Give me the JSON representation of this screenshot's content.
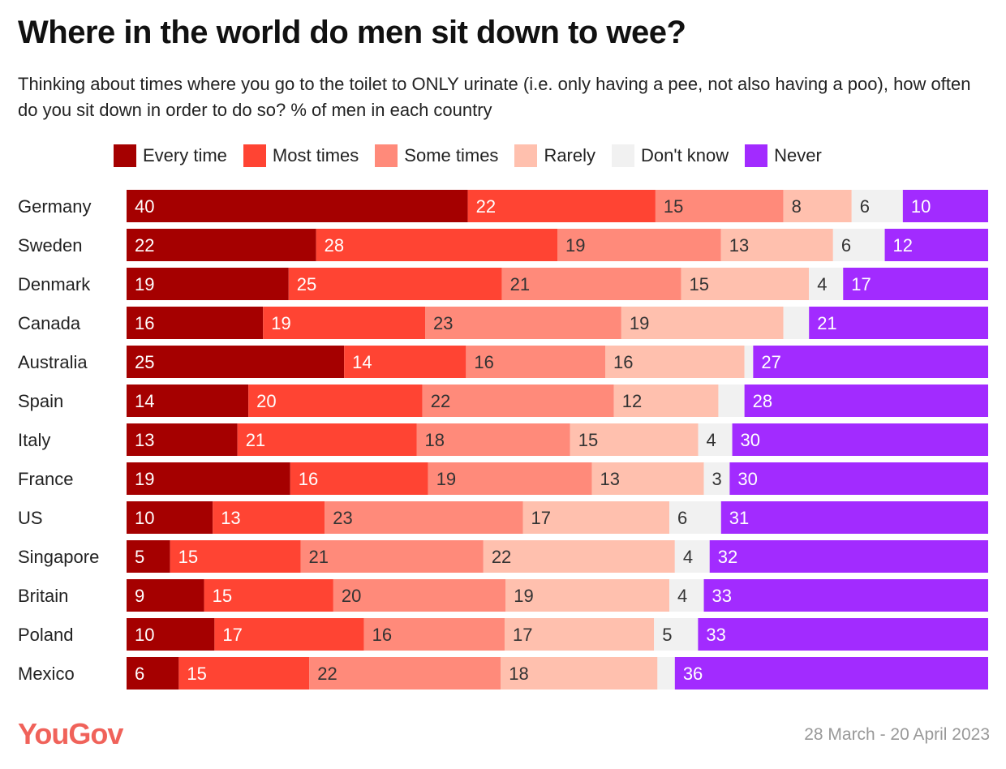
{
  "chart_data": {
    "type": "bar",
    "orientation": "horizontal",
    "stacked": true,
    "title": "Where in the world do men sit down to wee?",
    "subtitle": "Thinking about times where you go to the toilet to ONLY urinate (i.e. only having a pee, not also having a poo), how often do you sit down in order to do so? % of men in each country",
    "legend_position": "top",
    "grid": false,
    "categories": [
      "Germany",
      "Sweden",
      "Denmark",
      "Canada",
      "Australia",
      "Spain",
      "Italy",
      "France",
      "US",
      "Singapore",
      "Britain",
      "Poland",
      "Mexico"
    ],
    "series": [
      {
        "name": "Every time",
        "color": "#a50000",
        "text_color": "#ffffff",
        "values": [
          40,
          22,
          19,
          16,
          25,
          14,
          13,
          19,
          10,
          5,
          9,
          10,
          6
        ]
      },
      {
        "name": "Most times",
        "color": "#ff4433",
        "text_color": "#ffffff",
        "values": [
          22,
          28,
          25,
          19,
          14,
          20,
          21,
          16,
          13,
          15,
          15,
          17,
          15
        ]
      },
      {
        "name": "Some times",
        "color": "#ff8a7a",
        "text_color": "#333333",
        "values": [
          15,
          19,
          21,
          23,
          16,
          22,
          18,
          19,
          23,
          21,
          20,
          16,
          22
        ]
      },
      {
        "name": "Rarely",
        "color": "#ffc0ae",
        "text_color": "#333333",
        "values": [
          8,
          13,
          15,
          19,
          16,
          12,
          15,
          13,
          17,
          22,
          19,
          17,
          18
        ]
      },
      {
        "name": "Don't know",
        "color": "#f1f1f1",
        "text_color": "#333333",
        "values": [
          6,
          6,
          4,
          3,
          1,
          3,
          4,
          3,
          6,
          4,
          4,
          5,
          2
        ],
        "unlabeled": [
          false,
          false,
          false,
          true,
          true,
          true,
          false,
          false,
          false,
          false,
          false,
          false,
          true
        ]
      },
      {
        "name": "Never",
        "color": "#a22bff",
        "text_color": "#ffffff",
        "values": [
          10,
          12,
          17,
          21,
          27,
          28,
          30,
          30,
          31,
          32,
          33,
          33,
          36
        ]
      }
    ]
  },
  "footer": {
    "brand": "YouGov",
    "date": "28 March - 20 April 2023"
  }
}
